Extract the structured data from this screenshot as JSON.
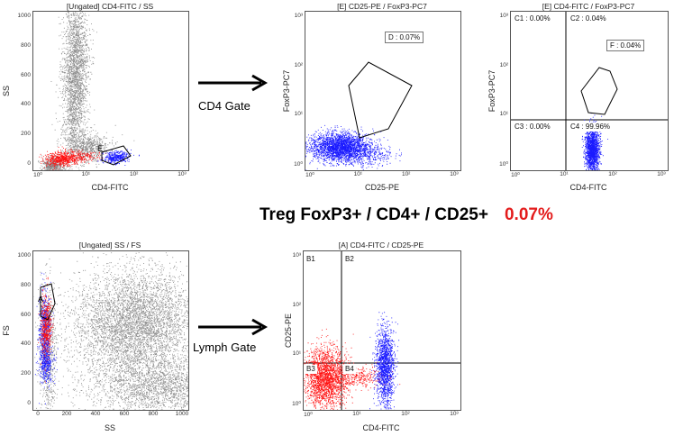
{
  "colors": {
    "gray": "#8c8c8c",
    "red": "#ff1010",
    "blue": "#1a1aff",
    "accent_red": "#e31b1b"
  },
  "arrows": {
    "top": "CD4 Gate",
    "bottom": "Lymph Gate"
  },
  "summary": {
    "label": "Treg FoxP3+ / CD4+ / CD25+",
    "value": "0.07%"
  },
  "chart_data": [
    {
      "id": "p1",
      "type": "scatter",
      "title": "[Ungated] CD4-FITC / SS",
      "xlabel": "CD4-FITC",
      "ylabel": "SS",
      "xticks": [
        "10⁰",
        "10¹",
        "10²",
        "10³"
      ],
      "yticks": [
        "0",
        "200",
        "400",
        "600",
        "800",
        "1000"
      ],
      "gates": [
        {
          "name": "E",
          "color": "#000"
        }
      ]
    },
    {
      "id": "p2",
      "type": "scatter",
      "title": "[E] CD25-PE / FoxP3-PC7",
      "xlabel": "CD25-PE",
      "ylabel": "FoxP3-PC7",
      "xticks": [
        "10⁰",
        "10¹",
        "10²",
        "10³"
      ],
      "yticks": [
        "10⁰",
        "10¹",
        "10²",
        "10³"
      ],
      "gates": [
        {
          "name": "D",
          "label": "D : 0.07%"
        }
      ]
    },
    {
      "id": "p3",
      "type": "scatter",
      "title": "[E] CD4-FITC / FoxP3-PC7",
      "xlabel": "CD4-FITC",
      "ylabel": "FoxP3-PC7",
      "xticks": [
        "10⁰",
        "10¹",
        "10²",
        "10³"
      ],
      "yticks": [
        "10⁰",
        "10¹",
        "10²",
        "10³"
      ],
      "gates": [
        {
          "name": "F",
          "label": "F : 0.04%"
        }
      ],
      "quadrants": [
        "C1 : 0.00%",
        "C2 : 0.04%",
        "C3 : 0.00%",
        "C4 : 99.96%"
      ]
    },
    {
      "id": "p4",
      "type": "scatter",
      "title": "[Ungated] SS / FS",
      "xlabel": "SS",
      "ylabel": "FS",
      "xticks": [
        "0",
        "200",
        "400",
        "600",
        "800",
        "1000"
      ],
      "yticks": [
        "0",
        "200",
        "400",
        "600",
        "800",
        "1000"
      ],
      "gates": [
        {
          "name": "A"
        }
      ]
    },
    {
      "id": "p5",
      "type": "scatter",
      "title": "[A] CD4-FITC / CD25-PE",
      "xlabel": "CD4-FITC",
      "ylabel": "CD25-PE",
      "xticks": [
        "10⁰",
        "10¹",
        "10²",
        "10³"
      ],
      "yticks": [
        "10⁰",
        "10¹",
        "10²",
        "10³"
      ],
      "quadrants": [
        "B1",
        "B2",
        "B3",
        "B4"
      ]
    }
  ]
}
